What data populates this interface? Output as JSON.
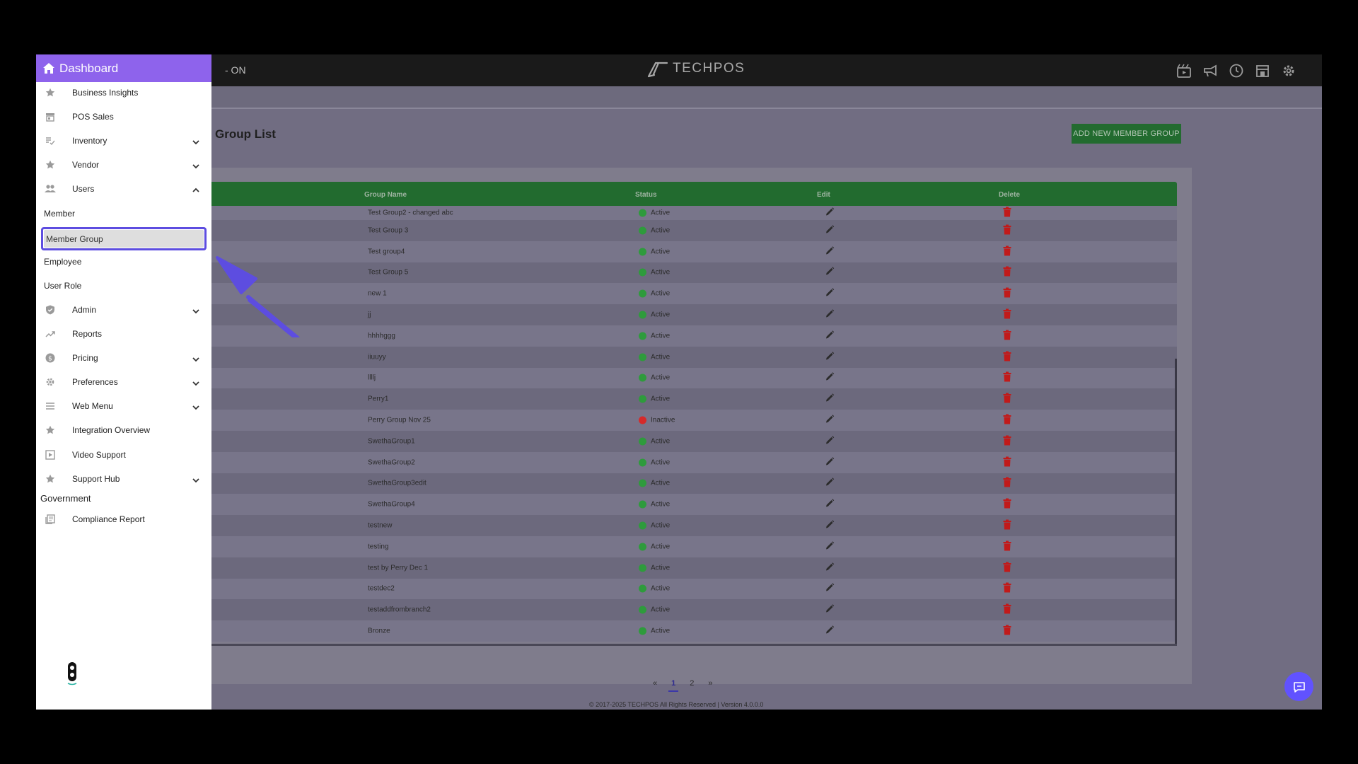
{
  "topbar": {
    "status_text": "- ON",
    "logo_text": "TECHPOS",
    "icons": [
      "video-icon",
      "megaphone-icon",
      "clock-icon",
      "store-icon",
      "gear-icon"
    ]
  },
  "page": {
    "title": "Group List",
    "add_button": "ADD NEW MEMBER GROUP"
  },
  "table": {
    "headers": {
      "group_name": "Group Name",
      "status": "Status",
      "edit": "Edit",
      "delete": "Delete"
    },
    "rows": [
      {
        "name": "Test Group2 - changed abc",
        "status": "Active"
      },
      {
        "name": "Test Group 3",
        "status": "Active"
      },
      {
        "name": "Test group4",
        "status": "Active"
      },
      {
        "name": "Test Group 5",
        "status": "Active"
      },
      {
        "name": "new 1",
        "status": "Active"
      },
      {
        "name": "jj",
        "status": "Active"
      },
      {
        "name": "hhhhggg",
        "status": "Active"
      },
      {
        "name": "iiuuyy",
        "status": "Active"
      },
      {
        "name": "llllj",
        "status": "Active"
      },
      {
        "name": "Perry1",
        "status": "Active"
      },
      {
        "name": "Perry Group Nov 25",
        "status": "Inactive"
      },
      {
        "name": "SwethaGroup1",
        "status": "Active"
      },
      {
        "name": "SwethaGroup2",
        "status": "Active"
      },
      {
        "name": "SwethaGroup3edit",
        "status": "Active"
      },
      {
        "name": "SwethaGroup4",
        "status": "Active"
      },
      {
        "name": "testnew",
        "status": "Active"
      },
      {
        "name": "testing",
        "status": "Active"
      },
      {
        "name": "test by Perry Dec 1",
        "status": "Active"
      },
      {
        "name": "testdec2",
        "status": "Active"
      },
      {
        "name": "testaddfrombranch2",
        "status": "Active"
      },
      {
        "name": "Bronze",
        "status": "Active"
      }
    ]
  },
  "pagination": {
    "prev": "«",
    "pages": [
      "1",
      "2"
    ],
    "current": "1",
    "next": "»"
  },
  "footer": "© 2017-2025 TECHPOS All Rights Reserved | Version 4.0.0.0",
  "sidebar": {
    "header": "Dashboard",
    "items": [
      {
        "label": "Business Insights",
        "icon": "star-icon",
        "chevron": ""
      },
      {
        "label": "POS Sales",
        "icon": "store-icon",
        "chevron": ""
      },
      {
        "label": "Inventory",
        "icon": "list-check-icon",
        "chevron": "down"
      },
      {
        "label": "Vendor",
        "icon": "star-icon",
        "chevron": "down"
      },
      {
        "label": "Users",
        "icon": "users-icon",
        "chevron": "up"
      },
      {
        "label": "Member",
        "icon": "",
        "chevron": ""
      },
      {
        "label": "Member Group",
        "icon": "",
        "chevron": ""
      },
      {
        "label": "Employee",
        "icon": "",
        "chevron": ""
      },
      {
        "label": "User Role",
        "icon": "",
        "chevron": ""
      },
      {
        "label": "Admin",
        "icon": "shield-icon",
        "chevron": "down"
      },
      {
        "label": "Reports",
        "icon": "trend-icon",
        "chevron": ""
      },
      {
        "label": "Pricing",
        "icon": "dollar-icon",
        "chevron": "down"
      },
      {
        "label": "Preferences",
        "icon": "gear-icon",
        "chevron": "down"
      },
      {
        "label": "Web Menu",
        "icon": "menu-icon",
        "chevron": "down"
      },
      {
        "label": "Integration Overview",
        "icon": "star-icon",
        "chevron": ""
      },
      {
        "label": "Video Support",
        "icon": "play-icon",
        "chevron": ""
      },
      {
        "label": "Support Hub",
        "icon": "star-icon",
        "chevron": "down"
      }
    ],
    "section_label": "Government",
    "compliance": {
      "label": "Compliance Report",
      "icon": "report-icon"
    }
  },
  "colors": {
    "accent": "#8e63ec",
    "highlight": "#5d4de0",
    "table_header": "#226b2f",
    "active": "#2e9b3c",
    "inactive": "#d62a2a",
    "delete": "#c11a1a"
  }
}
